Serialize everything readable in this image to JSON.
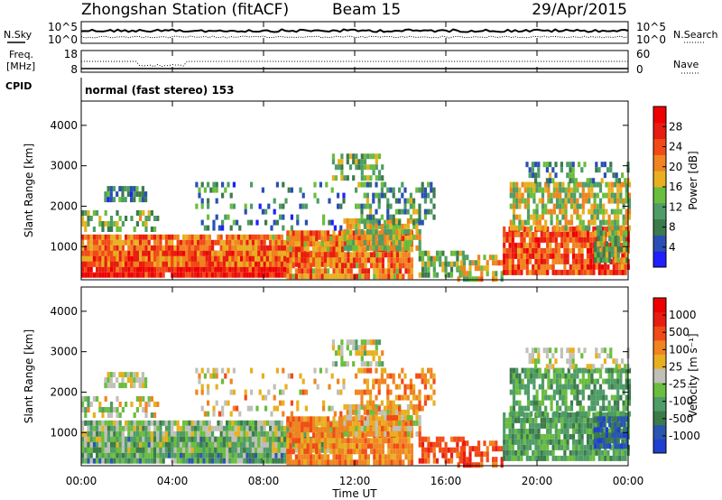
{
  "header": {
    "station": "Zhongshan Station (fitACF)",
    "beam": "Beam 15",
    "date": "29/Apr/2015"
  },
  "nsky_panel": {
    "left_label": "N.Sky",
    "right_label": "N.Search",
    "left_ticks": [
      "10^5",
      "10^0"
    ],
    "right_ticks": [
      "10^5",
      "10^0"
    ]
  },
  "freq_panel": {
    "left_label_line1": "Freq.",
    "left_label_line2": "[MHz]",
    "right_label": "Nave",
    "left_ticks": [
      "18",
      "8"
    ],
    "right_ticks": [
      "60",
      "0"
    ]
  },
  "cpid": {
    "label": "CPID",
    "mode": "normal (fast stereo) 153"
  },
  "xaxis": {
    "label": "Time UT",
    "ticks": [
      "00:00",
      "04:00",
      "08:00",
      "12:00",
      "16:00",
      "20:00",
      "00:00"
    ]
  },
  "colorbar_power": {
    "label": "Power [dB]",
    "ticks": [
      "4",
      "8",
      "12",
      "16",
      "20",
      "24",
      "28"
    ],
    "colors": [
      "#1f1fff",
      "#2a4fb4",
      "#3c7a4c",
      "#4f9c66",
      "#6abd3e",
      "#e8b020",
      "#f08420",
      "#f24a16",
      "#e81c10",
      "#ee0000"
    ]
  },
  "colorbar_velocity": {
    "label": "Velocity [m s⁻¹]",
    "ticks": [
      "1000",
      "500",
      "100",
      "25",
      "-25",
      "-100",
      "-500",
      "-1000"
    ],
    "colors": [
      "#1f3fd0",
      "#2a56b0",
      "#3c7a4c",
      "#4f9c66",
      "#6abd3e",
      "#c0c0b8",
      "#e8b020",
      "#f08420",
      "#f24a16",
      "#e81c10",
      "#ee0000"
    ]
  },
  "chart_data": [
    {
      "type": "heatmap",
      "name": "power",
      "title": "",
      "xlabel": "",
      "ylabel": "Slant Range [km]",
      "x_ticks": [
        "00:00",
        "04:00",
        "08:00",
        "12:00",
        "16:00",
        "20:00",
        "00:00"
      ],
      "y_ticks": [
        1000,
        2000,
        3000,
        4000
      ],
      "xlim_hours": [
        0,
        24
      ],
      "ylim_km": [
        180,
        4600
      ],
      "colorbar_label": "Power [dB]",
      "colorbar_ticks": [
        4,
        8,
        12,
        16,
        20,
        24,
        28
      ]
    },
    {
      "type": "heatmap",
      "name": "velocity",
      "title": "",
      "xlabel": "Time UT",
      "ylabel": "Slant Range [km]",
      "x_ticks": [
        "00:00",
        "04:00",
        "08:00",
        "12:00",
        "16:00",
        "20:00",
        "00:00"
      ],
      "y_ticks": [
        1000,
        2000,
        3000,
        4000
      ],
      "xlim_hours": [
        0,
        24
      ],
      "ylim_km": [
        180,
        4600
      ],
      "colorbar_label": "Velocity [m s⁻¹]",
      "colorbar_ticks": [
        1000,
        500,
        100,
        25,
        -25,
        -100,
        -500,
        -1000
      ]
    },
    {
      "type": "line",
      "name": "nsky-nsearch",
      "left_ticks": [
        "10^5",
        "10^0"
      ],
      "right_ticks": [
        "10^5",
        "10^0"
      ]
    },
    {
      "type": "line",
      "name": "freq-nave",
      "left_ticks": [
        18,
        8
      ],
      "right_ticks": [
        60,
        0
      ]
    }
  ]
}
